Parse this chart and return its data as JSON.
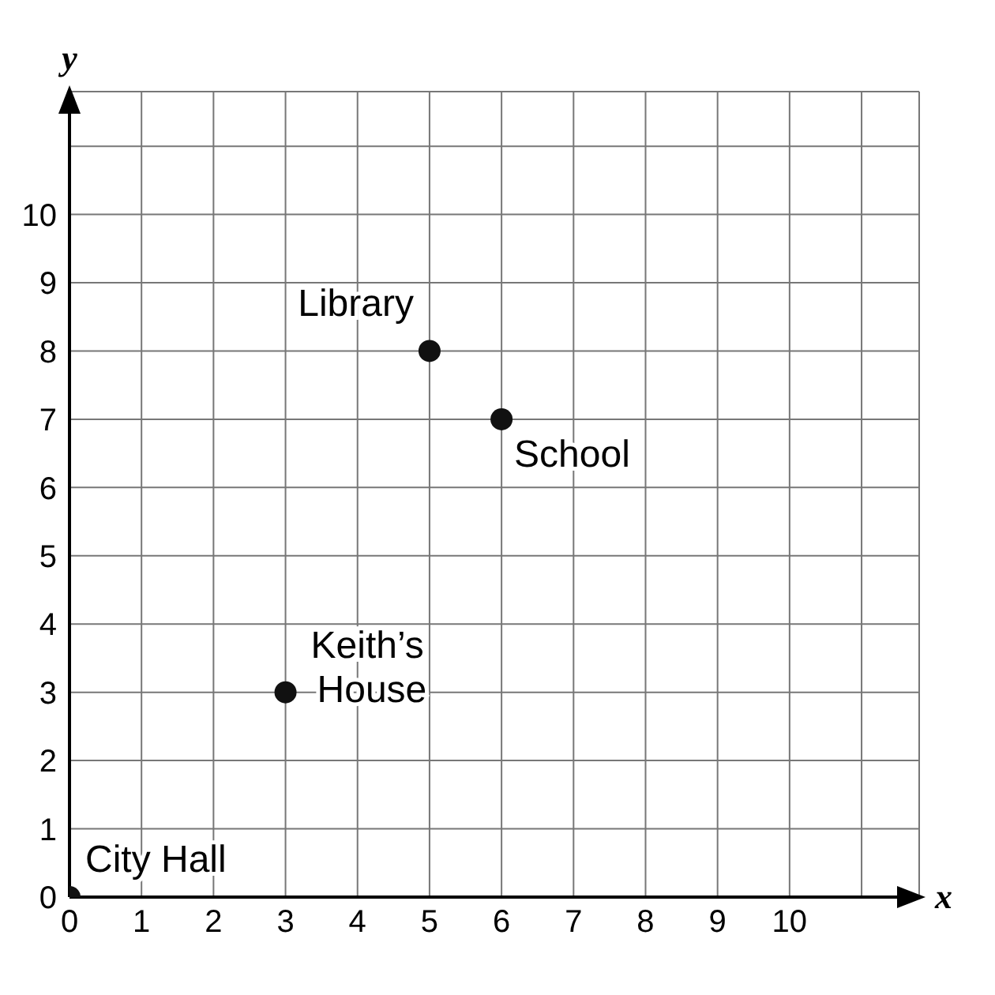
{
  "chart_data": {
    "type": "scatter",
    "xlabel": "x",
    "ylabel": "y",
    "x": [
      0,
      3,
      5,
      6
    ],
    "values": [
      0,
      3,
      8,
      7
    ],
    "color": "#111111",
    "marker": "circle",
    "xlim": [
      0,
      11.8
    ],
    "ylim": [
      0,
      11.8
    ],
    "xticks": [
      0,
      1,
      2,
      3,
      4,
      5,
      6,
      7,
      8,
      9,
      10,
      {
        "value": 11,
        "label": null
      }
    ],
    "yticks": [
      0,
      1,
      2,
      3,
      4,
      5,
      6,
      7,
      8,
      9,
      10,
      {
        "value": 11,
        "label": null
      }
    ],
    "grid": true,
    "annotations": [
      {
        "text": "City Hall",
        "x": 0,
        "y": 0
      },
      {
        "text": "Keith’s\nHouse",
        "x": 3,
        "y": 3
      },
      {
        "text": "Library",
        "x": 5,
        "y": 8
      },
      {
        "text": "School",
        "x": 6,
        "y": 7
      }
    ]
  }
}
